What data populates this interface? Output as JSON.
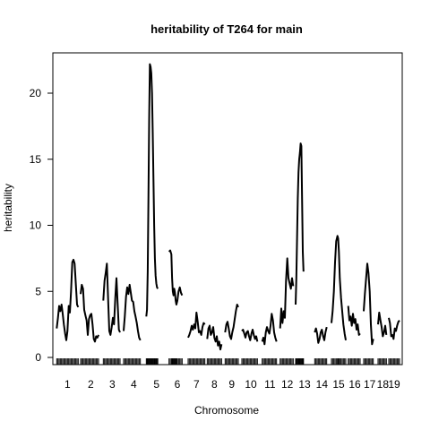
{
  "chart_data": {
    "type": "line",
    "title": "heritability of T264 for main",
    "xlabel": "Chromosome",
    "ylabel": "heritability",
    "ylim": [
      0,
      22.5
    ],
    "yticks": [
      0,
      5,
      10,
      15,
      20
    ],
    "grid": false,
    "chromosomes": [
      {
        "label": "1",
        "start": 0,
        "end": 100
      },
      {
        "label": "2",
        "start": 100,
        "end": 195
      },
      {
        "label": "3",
        "start": 195,
        "end": 280
      },
      {
        "label": "4",
        "start": 280,
        "end": 375
      },
      {
        "label": "5",
        "start": 375,
        "end": 470
      },
      {
        "label": "6",
        "start": 470,
        "end": 550
      },
      {
        "label": "7",
        "start": 550,
        "end": 630
      },
      {
        "label": "8",
        "start": 630,
        "end": 700
      },
      {
        "label": "9",
        "start": 700,
        "end": 775
      },
      {
        "label": "10",
        "start": 775,
        "end": 860
      },
      {
        "label": "11",
        "start": 860,
        "end": 935
      },
      {
        "label": "12",
        "start": 935,
        "end": 1005
      },
      {
        "label": "13",
        "start": 1005,
        "end": 1080
      },
      {
        "label": "14",
        "start": 1080,
        "end": 1150
      },
      {
        "label": "15",
        "start": 1150,
        "end": 1220
      },
      {
        "label": "16",
        "start": 1220,
        "end": 1285
      },
      {
        "label": "17",
        "start": 1285,
        "end": 1345
      },
      {
        "label": "18",
        "start": 1345,
        "end": 1395
      },
      {
        "label": "19",
        "start": 1395,
        "end": 1440
      }
    ],
    "series": [
      {
        "name": "chr1",
        "points": [
          [
            5,
            2.2
          ],
          [
            10,
            3.0
          ],
          [
            15,
            3.9
          ],
          [
            20,
            3.5
          ],
          [
            25,
            4.0
          ],
          [
            30,
            3.3
          ],
          [
            35,
            2.5
          ],
          [
            40,
            1.8
          ],
          [
            45,
            1.3
          ],
          [
            50,
            2.0
          ],
          [
            55,
            3.9
          ],
          [
            60,
            3.4
          ],
          [
            65,
            5.0
          ],
          [
            70,
            7.2
          ],
          [
            75,
            7.4
          ],
          [
            80,
            7.1
          ],
          [
            85,
            5.5
          ],
          [
            90,
            4.0
          ],
          [
            95,
            3.8
          ]
        ]
      },
      {
        "name": "chr2",
        "points": [
          [
            105,
            4.8
          ],
          [
            110,
            5.5
          ],
          [
            115,
            5.2
          ],
          [
            120,
            3.6
          ],
          [
            125,
            3.2
          ],
          [
            130,
            2.8
          ],
          [
            135,
            1.7
          ],
          [
            140,
            2.9
          ],
          [
            145,
            3.2
          ],
          [
            150,
            3.3
          ],
          [
            155,
            2.5
          ],
          [
            160,
            1.4
          ],
          [
            165,
            1.2
          ],
          [
            170,
            1.6
          ],
          [
            175,
            1.5
          ],
          [
            180,
            1.7
          ]
        ]
      },
      {
        "name": "chr3",
        "points": [
          [
            200,
            4.3
          ],
          [
            205,
            5.8
          ],
          [
            210,
            6.4
          ],
          [
            215,
            7.1
          ],
          [
            220,
            4.4
          ],
          [
            225,
            2.0
          ],
          [
            230,
            1.7
          ],
          [
            235,
            2.3
          ],
          [
            240,
            3.0
          ],
          [
            245,
            2.5
          ],
          [
            250,
            4.5
          ],
          [
            255,
            6.0
          ],
          [
            260,
            4.1
          ],
          [
            265,
            2.1
          ],
          [
            270,
            1.9
          ]
        ]
      },
      {
        "name": "chr4",
        "points": [
          [
            285,
            2.0
          ],
          [
            290,
            3.1
          ],
          [
            295,
            4.6
          ],
          [
            300,
            5.3
          ],
          [
            305,
            4.8
          ],
          [
            310,
            5.5
          ],
          [
            315,
            4.9
          ],
          [
            320,
            4.3
          ],
          [
            325,
            4.2
          ],
          [
            330,
            3.5
          ],
          [
            335,
            3.1
          ],
          [
            340,
            2.6
          ],
          [
            345,
            2.0
          ],
          [
            350,
            1.5
          ],
          [
            355,
            1.3
          ]
        ]
      },
      {
        "name": "chr5",
        "points": [
          [
            380,
            3.1
          ],
          [
            383,
            3.6
          ],
          [
            386,
            6.5
          ],
          [
            389,
            12.0
          ],
          [
            392,
            18.0
          ],
          [
            395,
            22.2
          ],
          [
            398,
            22.0
          ],
          [
            401,
            21.5
          ],
          [
            404,
            20.0
          ],
          [
            407,
            17.0
          ],
          [
            410,
            13.5
          ],
          [
            413,
            10.0
          ],
          [
            416,
            7.5
          ],
          [
            419,
            6.2
          ],
          [
            422,
            5.6
          ],
          [
            425,
            5.3
          ],
          [
            428,
            5.2
          ]
        ]
      },
      {
        "name": "chr6",
        "points": [
          [
            475,
            8.0
          ],
          [
            480,
            8.1
          ],
          [
            485,
            7.8
          ],
          [
            488,
            6.0
          ],
          [
            491,
            5.0
          ],
          [
            494,
            4.7
          ],
          [
            497,
            5.2
          ],
          [
            500,
            4.9
          ],
          [
            503,
            4.3
          ],
          [
            506,
            4.0
          ],
          [
            510,
            4.3
          ],
          [
            515,
            5.0
          ],
          [
            520,
            5.3
          ],
          [
            525,
            4.9
          ],
          [
            530,
            4.7
          ]
        ]
      },
      {
        "name": "chr7",
        "points": [
          [
            555,
            1.5
          ],
          [
            560,
            1.7
          ],
          [
            565,
            2.0
          ],
          [
            570,
            2.4
          ],
          [
            575,
            2.1
          ],
          [
            580,
            2.5
          ],
          [
            585,
            2.2
          ],
          [
            590,
            3.4
          ],
          [
            595,
            2.7
          ],
          [
            600,
            1.9
          ],
          [
            605,
            2.0
          ],
          [
            610,
            1.7
          ],
          [
            615,
            2.3
          ],
          [
            620,
            2.6
          ],
          [
            625,
            2.5
          ]
        ]
      },
      {
        "name": "chr8",
        "points": [
          [
            635,
            1.4
          ],
          [
            640,
            2.2
          ],
          [
            645,
            2.4
          ],
          [
            650,
            1.7
          ],
          [
            655,
            1.9
          ],
          [
            660,
            2.3
          ],
          [
            665,
            1.5
          ],
          [
            670,
            1.2
          ],
          [
            675,
            1.6
          ],
          [
            680,
            0.9
          ],
          [
            685,
            1.2
          ],
          [
            690,
            0.6
          ],
          [
            695,
            1.0
          ]
        ]
      },
      {
        "name": "chr9",
        "points": [
          [
            710,
            1.9
          ],
          [
            715,
            2.5
          ],
          [
            720,
            2.7
          ],
          [
            725,
            2.2
          ],
          [
            730,
            1.6
          ],
          [
            735,
            1.4
          ],
          [
            740,
            1.9
          ],
          [
            745,
            2.3
          ],
          [
            750,
            2.9
          ],
          [
            755,
            3.5
          ],
          [
            760,
            4.0
          ],
          [
            765,
            3.8
          ]
        ]
      },
      {
        "name": "chr10",
        "points": [
          [
            780,
            2.0
          ],
          [
            785,
            2.1
          ],
          [
            790,
            1.8
          ],
          [
            795,
            1.5
          ],
          [
            800,
            1.9
          ],
          [
            805,
            2.0
          ],
          [
            810,
            1.6
          ],
          [
            815,
            1.3
          ],
          [
            820,
            1.8
          ],
          [
            825,
            2.1
          ],
          [
            830,
            1.7
          ],
          [
            835,
            1.4
          ],
          [
            840,
            1.6
          ],
          [
            845,
            1.2
          ]
        ]
      },
      {
        "name": "chr11",
        "points": [
          [
            865,
            1.2
          ],
          [
            870,
            1.5
          ],
          [
            875,
            1.0
          ],
          [
            880,
            1.9
          ],
          [
            885,
            2.3
          ],
          [
            890,
            2.0
          ],
          [
            895,
            1.8
          ],
          [
            900,
            2.4
          ],
          [
            905,
            3.3
          ],
          [
            910,
            2.8
          ],
          [
            915,
            1.9
          ],
          [
            920,
            1.5
          ],
          [
            925,
            1.2
          ]
        ]
      },
      {
        "name": "chr12",
        "points": [
          [
            940,
            2.2
          ],
          [
            945,
            3.7
          ],
          [
            950,
            2.6
          ],
          [
            955,
            3.5
          ],
          [
            960,
            3.0
          ],
          [
            965,
            5.8
          ],
          [
            970,
            7.5
          ],
          [
            975,
            6.0
          ],
          [
            980,
            5.6
          ],
          [
            985,
            5.2
          ],
          [
            990,
            6.0
          ],
          [
            995,
            5.4
          ]
        ]
      },
      {
        "name": "chr13",
        "points": [
          [
            1005,
            4.0
          ],
          [
            1008,
            6.0
          ],
          [
            1011,
            9.0
          ],
          [
            1014,
            12.0
          ],
          [
            1017,
            14.0
          ],
          [
            1020,
            15.0
          ],
          [
            1023,
            15.5
          ],
          [
            1026,
            16.2
          ],
          [
            1029,
            16.0
          ],
          [
            1032,
            12.0
          ],
          [
            1035,
            8.0
          ],
          [
            1038,
            6.5
          ]
        ]
      },
      {
        "name": "chr14",
        "points": [
          [
            1085,
            1.9
          ],
          [
            1090,
            2.2
          ],
          [
            1095,
            1.8
          ],
          [
            1100,
            1.1
          ],
          [
            1105,
            1.4
          ],
          [
            1110,
            1.9
          ],
          [
            1115,
            2.1
          ],
          [
            1120,
            1.6
          ],
          [
            1125,
            1.3
          ],
          [
            1130,
            1.9
          ],
          [
            1135,
            2.3
          ]
        ]
      },
      {
        "name": "chr15",
        "points": [
          [
            1155,
            2.6
          ],
          [
            1160,
            3.5
          ],
          [
            1165,
            5.0
          ],
          [
            1170,
            7.2
          ],
          [
            1175,
            8.8
          ],
          [
            1180,
            9.2
          ],
          [
            1183,
            9.0
          ],
          [
            1186,
            8.0
          ],
          [
            1190,
            6.0
          ],
          [
            1195,
            4.5
          ],
          [
            1200,
            3.5
          ],
          [
            1205,
            2.5
          ],
          [
            1210,
            1.8
          ],
          [
            1215,
            1.3
          ]
        ]
      },
      {
        "name": "chr16",
        "points": [
          [
            1225,
            3.9
          ],
          [
            1230,
            2.8
          ],
          [
            1235,
            3.1
          ],
          [
            1240,
            2.4
          ],
          [
            1245,
            3.3
          ],
          [
            1250,
            2.6
          ],
          [
            1255,
            2.9
          ],
          [
            1260,
            2.1
          ],
          [
            1265,
            2.5
          ],
          [
            1270,
            1.7
          ],
          [
            1275,
            1.8
          ]
        ]
      },
      {
        "name": "chr17",
        "points": [
          [
            1290,
            3.5
          ],
          [
            1295,
            4.8
          ],
          [
            1300,
            6.0
          ],
          [
            1305,
            7.1
          ],
          [
            1310,
            6.4
          ],
          [
            1315,
            5.0
          ],
          [
            1320,
            2.5
          ],
          [
            1325,
            1.0
          ],
          [
            1330,
            1.4
          ]
        ]
      },
      {
        "name": "chr18",
        "points": [
          [
            1350,
            2.5
          ],
          [
            1355,
            3.4
          ],
          [
            1360,
            2.8
          ],
          [
            1365,
            2.3
          ],
          [
            1370,
            1.6
          ],
          [
            1375,
            1.9
          ],
          [
            1380,
            2.4
          ],
          [
            1385,
            1.7
          ]
        ]
      },
      {
        "name": "chr19",
        "points": [
          [
            1395,
            3.0
          ],
          [
            1400,
            2.6
          ],
          [
            1405,
            1.6
          ],
          [
            1410,
            1.7
          ],
          [
            1415,
            1.4
          ],
          [
            1420,
            2.2
          ],
          [
            1425,
            2.0
          ],
          [
            1430,
            2.4
          ],
          [
            1435,
            2.7
          ],
          [
            1440,
            2.8
          ]
        ]
      }
    ]
  }
}
